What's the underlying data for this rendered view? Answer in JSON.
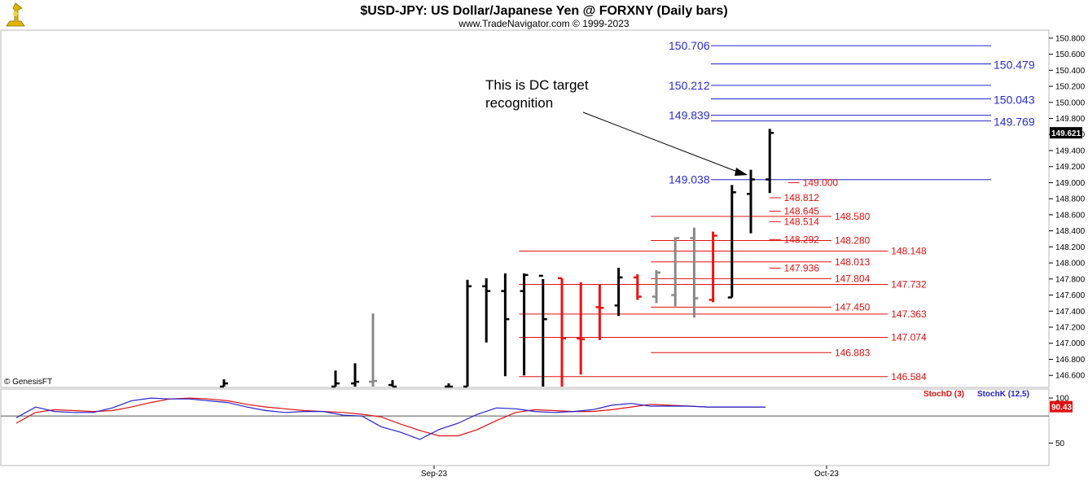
{
  "header": {
    "title": "$USD-JPY:  US Dollar/Japanese Yen @ FORXNY  (Daily bars)",
    "subtitle": "www.TradeNavigator.com © 1999-2023"
  },
  "copyright": "© GenesisFT",
  "annotation": "This is DC target recognition",
  "annotation_lines": [
    "This is DC target",
    "recognition"
  ],
  "colors": {
    "blue_level": "#2222cc",
    "red_level": "#e01010",
    "bar_black": "#000000",
    "bar_red": "#ee1111",
    "bar_gray": "#888888",
    "stochD": "#e01010",
    "stochK": "#2222cc",
    "last_price_bg": "#000000",
    "last_stoch_bg": "#e01010"
  },
  "chart_data": [
    {
      "type": "ohlc",
      "ylim": [
        146.45,
        150.9
      ],
      "y_ticks": [
        "150.800",
        "150.600",
        "150.400",
        "150.200",
        "150.000",
        "149.800",
        "149.600",
        "149.400",
        "149.200",
        "149.000",
        "148.800",
        "148.600",
        "148.400",
        "148.200",
        "148.000",
        "147.800",
        "147.600",
        "147.400",
        "147.200",
        "147.000",
        "146.800",
        "146.600"
      ],
      "last_price": "149.621",
      "x_labels": [
        {
          "label": "Sep-23",
          "bar": 21
        },
        {
          "label": "Oct-23",
          "bar": 41
        }
      ],
      "bars": [
        {
          "o": 146.4,
          "h": 146.55,
          "l": 146.4,
          "c": 146.5,
          "color": "black"
        },
        {
          "o": 146.4,
          "h": 146.66,
          "l": 146.4,
          "c": 146.5,
          "color": "black"
        },
        {
          "o": 146.5,
          "h": 146.75,
          "l": 146.4,
          "c": 146.52,
          "color": "black"
        },
        {
          "o": 146.52,
          "h": 147.37,
          "l": 146.4,
          "c": 146.53,
          "color": "gray"
        },
        {
          "o": 146.48,
          "h": 146.54,
          "l": 146.4,
          "c": 146.45,
          "color": "black"
        },
        {
          "o": 146.46,
          "h": 146.5,
          "l": 146.4,
          "c": 146.46,
          "color": "black"
        },
        {
          "o": 146.45,
          "h": 147.79,
          "l": 146.45,
          "c": 147.71,
          "color": "black"
        },
        {
          "o": 147.71,
          "h": 147.81,
          "l": 147.01,
          "c": 147.65,
          "color": "black"
        },
        {
          "o": 147.65,
          "h": 147.87,
          "l": 146.59,
          "c": 147.3,
          "color": "black"
        },
        {
          "o": 147.65,
          "h": 147.87,
          "l": 146.6,
          "c": 147.85,
          "color": "black"
        },
        {
          "o": 147.84,
          "h": 147.8,
          "l": 146.4,
          "c": 147.3,
          "color": "black"
        },
        {
          "o": 147.81,
          "h": 147.81,
          "l": 146.4,
          "c": 147.06,
          "color": "red"
        },
        {
          "o": 147.06,
          "h": 147.76,
          "l": 146.61,
          "c": 147.05,
          "color": "red"
        },
        {
          "o": 147.45,
          "h": 147.73,
          "l": 147.04,
          "c": 147.44,
          "color": "red"
        },
        {
          "o": 147.47,
          "h": 147.94,
          "l": 147.34,
          "c": 147.82,
          "color": "black"
        },
        {
          "o": 147.82,
          "h": 147.86,
          "l": 147.54,
          "c": 147.58,
          "color": "red"
        },
        {
          "o": 147.58,
          "h": 147.91,
          "l": 147.5,
          "c": 147.88,
          "color": "gray"
        },
        {
          "o": 147.6,
          "h": 148.32,
          "l": 147.46,
          "c": 148.31,
          "color": "gray"
        },
        {
          "o": 148.31,
          "h": 148.44,
          "l": 147.32,
          "c": 147.56,
          "color": "gray"
        },
        {
          "o": 147.54,
          "h": 148.39,
          "l": 147.51,
          "c": 148.34,
          "color": "red"
        },
        {
          "o": 147.57,
          "h": 148.97,
          "l": 147.57,
          "c": 148.88,
          "color": "black"
        },
        {
          "o": 148.86,
          "h": 149.16,
          "l": 148.37,
          "c": 149.04,
          "color": "black"
        },
        {
          "o": 149.04,
          "h": 149.67,
          "l": 148.87,
          "c": 149.62,
          "color": "black"
        }
      ],
      "blue_levels": [
        {
          "value": 150.706,
          "label": "150.706",
          "side": "left"
        },
        {
          "value": 150.479,
          "label": "150.479",
          "side": "right"
        },
        {
          "value": 150.212,
          "label": "150.212",
          "side": "left"
        },
        {
          "value": 150.043,
          "label": "150.043",
          "side": "right"
        },
        {
          "value": 149.839,
          "label": "149.839",
          "side": "left"
        },
        {
          "value": 149.769,
          "label": "149.769",
          "side": "right"
        },
        {
          "value": 149.038,
          "label": "149.038",
          "side": "left"
        }
      ],
      "red_levels": [
        {
          "value": 149.0,
          "label": "149.000",
          "start_bar": 19.3,
          "end_bar": 19.9
        },
        {
          "value": 148.812,
          "label": "148.812",
          "start_bar": 18.3,
          "end_bar": 18.9
        },
        {
          "value": 148.645,
          "label": "148.645",
          "start_bar": 18.3,
          "end_bar": 18.9
        },
        {
          "value": 148.514,
          "label": "148.514",
          "start_bar": 18.3,
          "end_bar": 18.9
        },
        {
          "value": 148.58,
          "label": "148.580",
          "start_bar": 12.0,
          "end_bar": 21.6
        },
        {
          "value": 148.292,
          "label": "148.292",
          "start_bar": 18.3,
          "end_bar": 18.9
        },
        {
          "value": 148.28,
          "label": "148.280",
          "start_bar": 12.0,
          "end_bar": 21.6
        },
        {
          "value": 148.148,
          "label": "148.148",
          "start_bar": 5.0,
          "end_bar": 24.6
        },
        {
          "value": 148.013,
          "label": "148.013",
          "start_bar": 12.0,
          "end_bar": 21.6
        },
        {
          "value": 147.936,
          "label": "147.936",
          "start_bar": 18.3,
          "end_bar": 18.9
        },
        {
          "value": 147.804,
          "label": "147.804",
          "start_bar": 12.0,
          "end_bar": 21.6
        },
        {
          "value": 147.732,
          "label": "147.732",
          "start_bar": 5.0,
          "end_bar": 24.6
        },
        {
          "value": 147.45,
          "label": "147.450",
          "start_bar": 12.0,
          "end_bar": 21.6
        },
        {
          "value": 147.363,
          "label": "147.363",
          "start_bar": 5.0,
          "end_bar": 24.6
        },
        {
          "value": 147.074,
          "label": "147.074",
          "start_bar": 5.0,
          "end_bar": 24.6
        },
        {
          "value": 146.883,
          "label": "146.883",
          "start_bar": 12.0,
          "end_bar": 21.6
        },
        {
          "value": 146.584,
          "label": "146.584",
          "start_bar": 5.0,
          "end_bar": 24.6
        }
      ]
    },
    {
      "type": "line",
      "series": [
        {
          "name": "StochD (3)",
          "values": [
            72,
            84,
            87,
            86,
            85,
            86,
            90,
            95,
            99,
            100,
            99,
            97,
            93,
            90,
            88,
            86,
            85,
            84,
            82,
            79,
            71,
            64,
            58,
            58,
            65,
            75,
            84,
            87,
            86,
            85,
            85,
            87,
            90,
            93,
            92,
            91,
            90,
            90,
            90,
            90
          ]
        },
        {
          "name": "StochK (12,5)",
          "values": [
            78,
            90,
            85,
            84,
            84,
            89,
            97,
            100,
            99,
            99,
            97,
            95,
            90,
            86,
            84,
            85,
            85,
            81,
            80,
            68,
            62,
            54,
            65,
            72,
            82,
            89,
            88,
            85,
            84,
            85,
            87,
            92,
            94,
            91,
            91,
            91,
            90,
            90,
            90,
            90
          ]
        }
      ],
      "ylim": [
        25,
        110
      ],
      "y_ticks": [
        "100",
        "50"
      ],
      "reference_line": 80,
      "last_value": "90.43"
    }
  ]
}
